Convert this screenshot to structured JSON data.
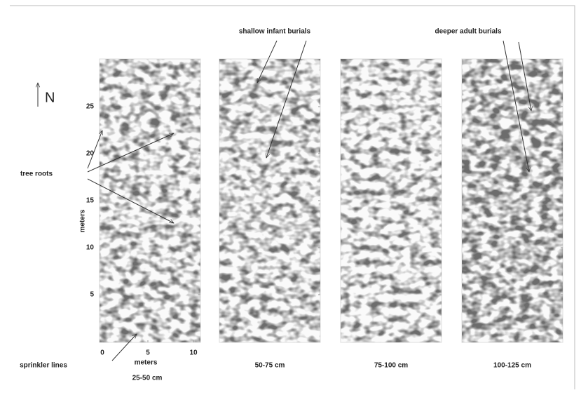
{
  "annotations": {
    "shallow": "shallow infant burials",
    "deeper": "deeper adult burials",
    "tree_roots": "tree roots",
    "sprinkler_lines": "sprinkler lines"
  },
  "north": "N",
  "y_axis": {
    "label": "meters",
    "ticks": [
      5,
      10,
      15,
      20,
      25
    ]
  },
  "x_axis": {
    "label": "meters",
    "ticks": [
      0,
      5,
      10
    ]
  },
  "panels": [
    "25-50 cm",
    "50-75 cm",
    "75-100 cm",
    "100-125 cm"
  ]
}
